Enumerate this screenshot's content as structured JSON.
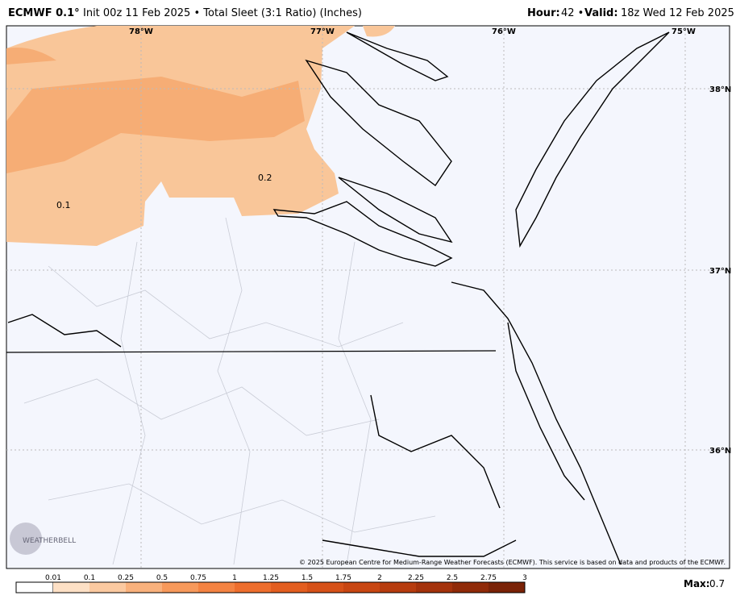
{
  "header": {
    "model": "ECMWF 0.1°",
    "description": "Init 00z 11 Feb 2025 • Total Sleet (3:1 Ratio) (Inches)",
    "hour_label": "Hour:",
    "hour": "42 •",
    "valid_label": "Valid:",
    "valid": "18z Wed 12 Feb 2025"
  },
  "map": {
    "lon_labels": [
      "78°W",
      "77°W",
      "76°W",
      "75°W"
    ],
    "lat_labels": [
      "38°N",
      "37°N",
      "36°N"
    ],
    "contour_labels": [
      "0.2",
      "0.1"
    ],
    "copyright": "© 2025 European Centre for Medium-Range Weather Forecasts (ECMWF). This service is based on data and products of the ECMWF.",
    "logo": "WEATHERBELL"
  },
  "legend": {
    "ticks": [
      "0.01",
      "0.1",
      "0.25",
      "0.5",
      "0.75",
      "1",
      "1.25",
      "1.5",
      "1.75",
      "2",
      "2.25",
      "2.5",
      "2.75",
      "3"
    ],
    "colors": [
      "#fde0c5",
      "#fbc9a0",
      "#f9b17c",
      "#f7995b",
      "#f48342",
      "#ee6e2d",
      "#e35e20",
      "#d65118",
      "#c84612",
      "#b73c0e",
      "#a4320b",
      "#902a08",
      "#7a2206"
    ],
    "max_label": "Max:",
    "max": "0.7"
  }
}
